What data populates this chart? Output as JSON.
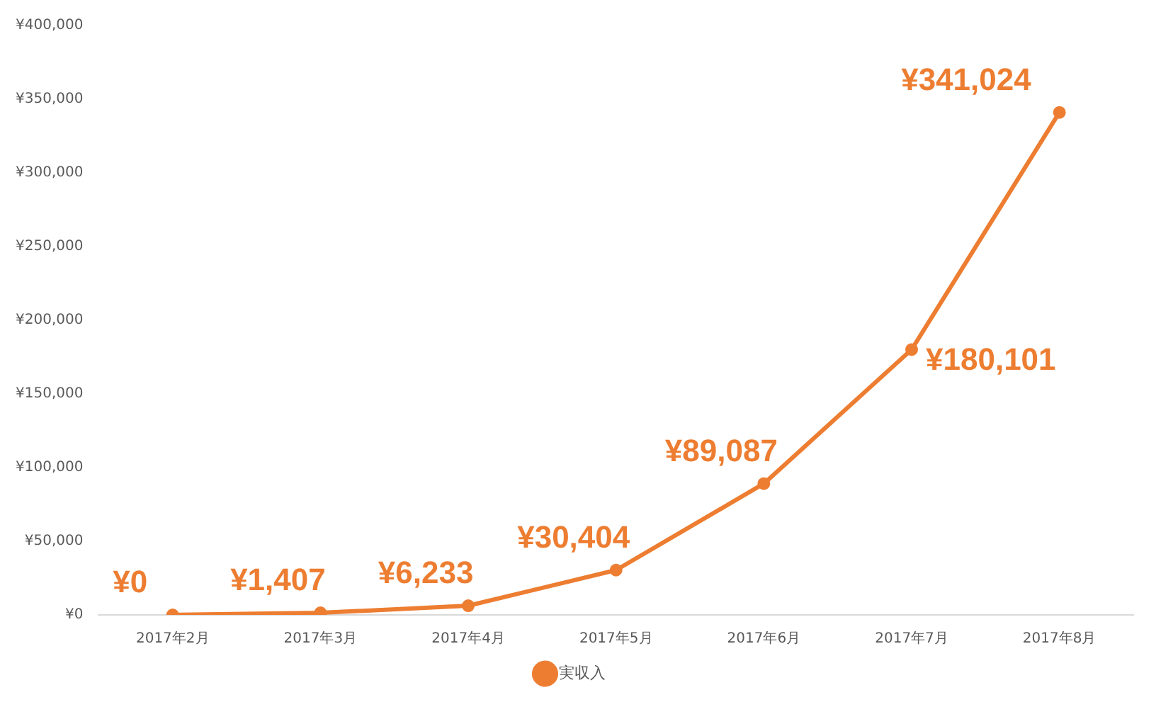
{
  "chart_data": {
    "type": "line",
    "categories": [
      "2017年2月",
      "2017年3月",
      "2017年4月",
      "2017年5月",
      "2017年6月",
      "2017年7月",
      "2017年8月"
    ],
    "series": [
      {
        "name": "実収入",
        "color": "#ed7d31",
        "values": [
          0,
          1407,
          6233,
          30404,
          89087,
          180101,
          341024
        ],
        "value_labels": [
          "¥0",
          "¥1,407",
          "¥6,233",
          "¥30,404",
          "¥89,087",
          "¥180,101",
          "¥341,024"
        ]
      }
    ],
    "ylim": [
      0,
      400000
    ],
    "yticks": [
      {
        "value": 0,
        "label": "¥0"
      },
      {
        "value": 50000,
        "label": "¥50,000"
      },
      {
        "value": 100000,
        "label": "¥100,000"
      },
      {
        "value": 150000,
        "label": "¥150,000"
      },
      {
        "value": 200000,
        "label": "¥200,000"
      },
      {
        "value": 250000,
        "label": "¥250,000"
      },
      {
        "value": 300000,
        "label": "¥300,000"
      },
      {
        "value": 350000,
        "label": "¥350,000"
      },
      {
        "value": 400000,
        "label": "¥400,000"
      }
    ],
    "grid": false,
    "legend": "bottom",
    "marker": "circle",
    "line_style": "solid"
  }
}
